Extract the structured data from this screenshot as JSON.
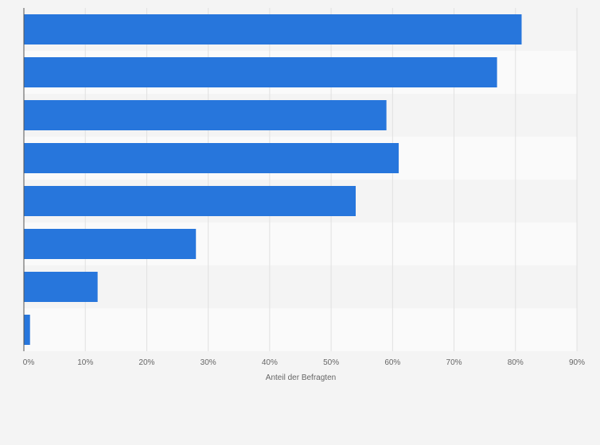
{
  "colors": {
    "bar": "#2776dc",
    "band_a": "#f4f4f4",
    "band_b": "#fafafa",
    "grid": "#e1e1e1",
    "axis": "#555555",
    "text": "#666666"
  },
  "chart_data": {
    "type": "bar",
    "orientation": "horizontal",
    "title": "",
    "xlabel": "Anteil der Befragten",
    "ylabel": "",
    "categories": [
      "",
      "",
      "",
      "",
      "",
      "",
      "",
      ""
    ],
    "values": [
      81,
      77,
      59,
      61,
      54,
      28,
      12,
      1
    ],
    "unit": "%",
    "xlim": [
      0,
      90
    ],
    "xticks": [
      0,
      10,
      20,
      30,
      40,
      50,
      60,
      70,
      80,
      90
    ],
    "xtick_labels": [
      "0%",
      "10%",
      "20%",
      "30%",
      "40%",
      "50%",
      "60%",
      "70%",
      "80%",
      "90%"
    ],
    "grid": true,
    "legend": "none"
  }
}
